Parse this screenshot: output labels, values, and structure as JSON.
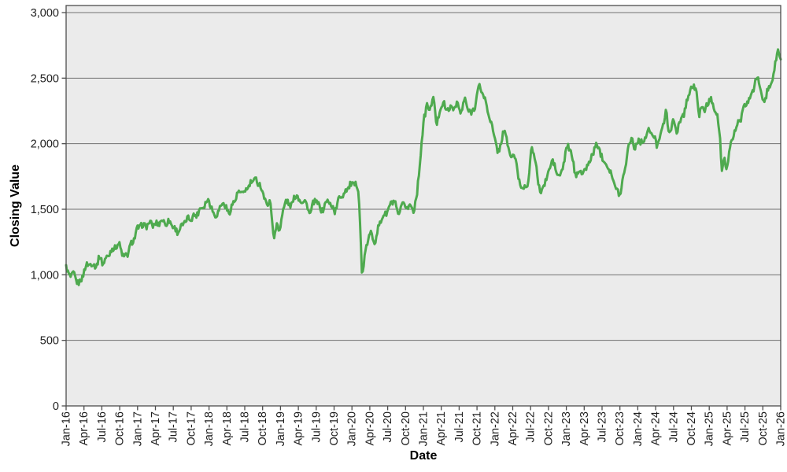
{
  "chart_data": {
    "type": "line",
    "title": "",
    "xlabel": "Date",
    "ylabel": "Closing Value",
    "legend": "none",
    "grid": "horizontal",
    "ylim": [
      0,
      3054
    ],
    "y_ticks": [
      {
        "value": 0,
        "label": "0"
      },
      {
        "value": 500,
        "label": "500"
      },
      {
        "value": 1000,
        "label": "1,000"
      },
      {
        "value": 1500,
        "label": "1,500"
      },
      {
        "value": 2000,
        "label": "2,000"
      },
      {
        "value": 2500,
        "label": "2,500"
      },
      {
        "value": 3000,
        "label": "3,000"
      }
    ],
    "x_tick_spacing_months": 3,
    "x_tick_labels": [
      "Jan-16",
      "Apr-16",
      "Jul-16",
      "Oct-16",
      "Jan-17",
      "Apr-17",
      "Jul-17",
      "Oct-17",
      "Jan-18",
      "Apr-18",
      "Jul-18",
      "Oct-18",
      "Jan-19",
      "Apr-19",
      "Jul-19",
      "Oct-19",
      "Jan-20",
      "Apr-20",
      "Jul-20",
      "Oct-20",
      "Jan-21",
      "Apr-21",
      "Jul-21",
      "Oct-21",
      "Jan-22",
      "Apr-22",
      "Jul-22",
      "Oct-22",
      "Jan-23",
      "Apr-23",
      "Jul-23",
      "Oct-23",
      "Jan-24",
      "Apr-24",
      "Jul-24",
      "Oct-24",
      "Jan-25",
      "Apr-25",
      "Jul-25",
      "Oct-25",
      "Jan-26"
    ],
    "x_range_months": 120,
    "colors": {
      "plot_background": "#ebebeb",
      "gridline": "#707070",
      "border": "#4d4d4d",
      "tick_label": "#1f1f1f",
      "series_green": "#4faa4f"
    },
    "series": [
      {
        "name": "Closing Value",
        "color": "#4faa4f",
        "x_unit": "months-since-Jan-2016",
        "points": [
          [
            0,
            1060
          ],
          [
            0.3,
            1010
          ],
          [
            0.7,
            990
          ],
          [
            1.2,
            1005
          ],
          [
            1.7,
            960
          ],
          [
            2.2,
            935
          ],
          [
            2.7,
            975
          ],
          [
            3.1,
            1050
          ],
          [
            3.6,
            1075
          ],
          [
            4.1,
            1090
          ],
          [
            4.6,
            1070
          ],
          [
            5.1,
            1075
          ],
          [
            5.7,
            1140
          ],
          [
            6.2,
            1085
          ],
          [
            6.8,
            1130
          ],
          [
            7.5,
            1180
          ],
          [
            8.2,
            1215
          ],
          [
            9,
            1230
          ],
          [
            9.7,
            1125
          ],
          [
            10.3,
            1160
          ],
          [
            11,
            1240
          ],
          [
            11.6,
            1300
          ],
          [
            12,
            1350
          ],
          [
            12.6,
            1380
          ],
          [
            13.3,
            1370
          ],
          [
            14,
            1395
          ],
          [
            14.7,
            1380
          ],
          [
            15.4,
            1390
          ],
          [
            16,
            1415
          ],
          [
            16.7,
            1395
          ],
          [
            17.5,
            1405
          ],
          [
            18.2,
            1350
          ],
          [
            18.7,
            1330
          ],
          [
            19.4,
            1365
          ],
          [
            20.2,
            1420
          ],
          [
            21,
            1435
          ],
          [
            21.8,
            1455
          ],
          [
            22.5,
            1500
          ],
          [
            23.3,
            1540
          ],
          [
            24,
            1575
          ],
          [
            24.8,
            1455
          ],
          [
            25.6,
            1475
          ],
          [
            26.2,
            1560
          ],
          [
            26.8,
            1510
          ],
          [
            27.4,
            1475
          ],
          [
            28.2,
            1560
          ],
          [
            29,
            1630
          ],
          [
            29.7,
            1620
          ],
          [
            30.5,
            1665
          ],
          [
            31.2,
            1705
          ],
          [
            31.8,
            1735
          ],
          [
            32.2,
            1690
          ],
          [
            32.6,
            1700
          ],
          [
            33.2,
            1590
          ],
          [
            33.7,
            1540
          ],
          [
            34.2,
            1560
          ],
          [
            34.6,
            1430
          ],
          [
            34.95,
            1265
          ],
          [
            35.4,
            1390
          ],
          [
            35.9,
            1350
          ],
          [
            36.4,
            1470
          ],
          [
            36.9,
            1580
          ],
          [
            37.5,
            1520
          ],
          [
            38.2,
            1570
          ],
          [
            38.8,
            1615
          ],
          [
            39.5,
            1550
          ],
          [
            40.1,
            1575
          ],
          [
            40.9,
            1460
          ],
          [
            41.5,
            1545
          ],
          [
            42.2,
            1560
          ],
          [
            42.9,
            1480
          ],
          [
            43.7,
            1560
          ],
          [
            44.4,
            1545
          ],
          [
            45.1,
            1480
          ],
          [
            45.9,
            1590
          ],
          [
            46.6,
            1620
          ],
          [
            47.2,
            1655
          ],
          [
            47.7,
            1690
          ],
          [
            48.2,
            1680
          ],
          [
            48.7,
            1700
          ],
          [
            49.1,
            1640
          ],
          [
            49.35,
            1420
          ],
          [
            49.7,
            985
          ],
          [
            50.2,
            1150
          ],
          [
            50.7,
            1280
          ],
          [
            51.2,
            1310
          ],
          [
            51.9,
            1255
          ],
          [
            52.6,
            1390
          ],
          [
            53.3,
            1450
          ],
          [
            53.9,
            1480
          ],
          [
            54.6,
            1545
          ],
          [
            55.1,
            1570
          ],
          [
            55.7,
            1450
          ],
          [
            56.3,
            1510
          ],
          [
            56.9,
            1545
          ],
          [
            57.4,
            1500
          ],
          [
            57.9,
            1540
          ],
          [
            58.4,
            1480
          ],
          [
            58.9,
            1620
          ],
          [
            59.3,
            1800
          ],
          [
            59.7,
            2000
          ],
          [
            60.1,
            2200
          ],
          [
            60.6,
            2290
          ],
          [
            61.1,
            2250
          ],
          [
            61.6,
            2370
          ],
          [
            62.2,
            2150
          ],
          [
            62.9,
            2270
          ],
          [
            63.4,
            2330
          ],
          [
            63.9,
            2230
          ],
          [
            64.4,
            2290
          ],
          [
            65,
            2250
          ],
          [
            65.6,
            2330
          ],
          [
            66.2,
            2220
          ],
          [
            66.9,
            2340
          ],
          [
            67.5,
            2260
          ],
          [
            68.1,
            2230
          ],
          [
            68.7,
            2300
          ],
          [
            69.1,
            2390
          ],
          [
            69.5,
            2450
          ],
          [
            70,
            2370
          ],
          [
            70.6,
            2300
          ],
          [
            71.2,
            2180
          ],
          [
            71.7,
            2100
          ],
          [
            72.1,
            2010
          ],
          [
            72.5,
            1930
          ],
          [
            73,
            2000
          ],
          [
            73.5,
            2100
          ],
          [
            74,
            2040
          ],
          [
            74.6,
            1890
          ],
          [
            75.2,
            1930
          ],
          [
            75.9,
            1760
          ],
          [
            76.6,
            1640
          ],
          [
            77.1,
            1700
          ],
          [
            77.6,
            1680
          ],
          [
            78.2,
            2000
          ],
          [
            78.9,
            1830
          ],
          [
            79.6,
            1620
          ],
          [
            80.2,
            1680
          ],
          [
            80.9,
            1760
          ],
          [
            81.6,
            1880
          ],
          [
            82.3,
            1790
          ],
          [
            82.9,
            1740
          ],
          [
            83.5,
            1840
          ],
          [
            84.2,
            1990
          ],
          [
            84.9,
            1920
          ],
          [
            85.5,
            1760
          ],
          [
            86.2,
            1800
          ],
          [
            86.9,
            1770
          ],
          [
            87.6,
            1840
          ],
          [
            88.3,
            1900
          ],
          [
            89,
            2000
          ],
          [
            89.6,
            1950
          ],
          [
            90.3,
            1870
          ],
          [
            91,
            1830
          ],
          [
            91.7,
            1750
          ],
          [
            92.4,
            1640
          ],
          [
            93,
            1615
          ],
          [
            93.6,
            1750
          ],
          [
            94.3,
            1950
          ],
          [
            95,
            2060
          ],
          [
            95.5,
            1950
          ],
          [
            96.1,
            2040
          ],
          [
            96.7,
            2000
          ],
          [
            97.3,
            2060
          ],
          [
            98,
            2100
          ],
          [
            98.6,
            2060
          ],
          [
            99.2,
            1990
          ],
          [
            99.8,
            2080
          ],
          [
            100.3,
            2140
          ],
          [
            100.7,
            2260
          ],
          [
            101.2,
            2090
          ],
          [
            101.9,
            2160
          ],
          [
            102.5,
            2100
          ],
          [
            103.2,
            2180
          ],
          [
            103.8,
            2240
          ],
          [
            104.3,
            2330
          ],
          [
            104.8,
            2420
          ],
          [
            105.4,
            2430
          ],
          [
            105.9,
            2400
          ],
          [
            106.3,
            2210
          ],
          [
            106.8,
            2280
          ],
          [
            107.3,
            2250
          ],
          [
            107.8,
            2320
          ],
          [
            108.2,
            2340
          ],
          [
            108.8,
            2290
          ],
          [
            109.4,
            2200
          ],
          [
            109.8,
            2050
          ],
          [
            110.15,
            1770
          ],
          [
            110.5,
            1880
          ],
          [
            110.9,
            1800
          ],
          [
            111.4,
            1950
          ],
          [
            112,
            2060
          ],
          [
            112.6,
            2140
          ],
          [
            113.3,
            2190
          ],
          [
            114,
            2290
          ],
          [
            114.6,
            2330
          ],
          [
            115.2,
            2390
          ],
          [
            115.9,
            2480
          ],
          [
            116.3,
            2500
          ],
          [
            116.7,
            2400
          ],
          [
            117.2,
            2290
          ],
          [
            117.7,
            2400
          ],
          [
            118.3,
            2430
          ],
          [
            118.8,
            2520
          ],
          [
            119.2,
            2640
          ],
          [
            119.6,
            2730
          ],
          [
            120,
            2640
          ]
        ]
      }
    ]
  }
}
